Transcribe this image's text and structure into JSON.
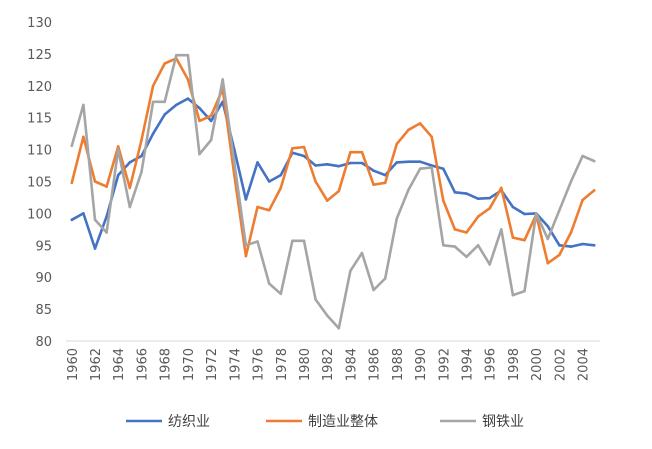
{
  "chart_data": {
    "type": "line",
    "title": "",
    "xlabel": "",
    "ylabel": "",
    "ylim": [
      80,
      130
    ],
    "yticks": [
      80,
      85,
      90,
      95,
      100,
      105,
      110,
      115,
      120,
      125,
      130
    ],
    "x": [
      1960,
      1961,
      1962,
      1963,
      1964,
      1965,
      1966,
      1967,
      1968,
      1969,
      1970,
      1971,
      1972,
      1973,
      1974,
      1975,
      1976,
      1977,
      1978,
      1979,
      1980,
      1981,
      1982,
      1983,
      1984,
      1985,
      1986,
      1987,
      1988,
      1989,
      1990,
      1991,
      1992,
      1993,
      1994,
      1995,
      1996,
      1997,
      1998,
      1999,
      2000,
      2001,
      2002,
      2003,
      2004,
      2005
    ],
    "xtick_labels": [
      "1960",
      "1962",
      "1964",
      "1966",
      "1968",
      "1970",
      "1972",
      "1974",
      "1976",
      "1978",
      "1980",
      "1982",
      "1984",
      "1986",
      "1988",
      "1990",
      "1992",
      "1994",
      "1996",
      "1998",
      "2000",
      "2002",
      "2004"
    ],
    "grid": false,
    "legend_position": "bottom",
    "series": [
      {
        "name": "纺织业",
        "color": "#4472C4",
        "values": [
          99.0,
          100.0,
          94.5,
          99.5,
          106.0,
          108.0,
          109.0,
          112.5,
          115.5,
          117.0,
          118.0,
          116.5,
          114.5,
          117.5,
          110.0,
          102.2,
          108.0,
          105.0,
          106.0,
          109.5,
          109.0,
          107.5,
          107.7,
          107.4,
          107.9,
          107.9,
          106.7,
          106.0,
          108.0,
          108.1,
          108.1,
          107.5,
          107.0,
          103.3,
          103.1,
          102.3,
          102.4,
          103.6,
          101.0,
          99.9,
          100.0,
          98.0,
          95.0,
          94.8,
          95.2,
          95.0
        ]
      },
      {
        "name": "制造业整体",
        "color": "#ED7D31",
        "values": [
          104.8,
          112.0,
          105.0,
          104.2,
          110.5,
          104.0,
          111.5,
          120.0,
          123.5,
          124.3,
          121.0,
          114.5,
          115.3,
          119.5,
          106.0,
          93.3,
          101.0,
          100.5,
          104.0,
          110.2,
          110.4,
          105.0,
          102.0,
          103.5,
          109.6,
          109.6,
          104.5,
          104.8,
          110.9,
          113.1,
          114.1,
          112.0,
          102.0,
          97.5,
          97.0,
          99.5,
          100.8,
          104.0,
          96.2,
          95.8,
          99.8,
          92.2,
          93.5,
          97.0,
          102.1,
          103.6
        ]
      },
      {
        "name": "钢铁业",
        "color": "#A5A5A5",
        "values": [
          110.6,
          117.0,
          99.0,
          97.0,
          110.0,
          101.0,
          106.5,
          117.5,
          117.5,
          124.8,
          124.8,
          109.3,
          111.5,
          121.0,
          108.0,
          95.0,
          95.6,
          89.0,
          87.4,
          95.7,
          95.7,
          86.5,
          84.0,
          82.0,
          91.0,
          93.8,
          88.0,
          89.8,
          99.2,
          103.7,
          107.0,
          107.2,
          95.0,
          94.8,
          93.2,
          95.0,
          92.0,
          97.5,
          87.2,
          87.8,
          100.0,
          96.0,
          100.5,
          105.0,
          109.0,
          108.2
        ]
      }
    ]
  }
}
